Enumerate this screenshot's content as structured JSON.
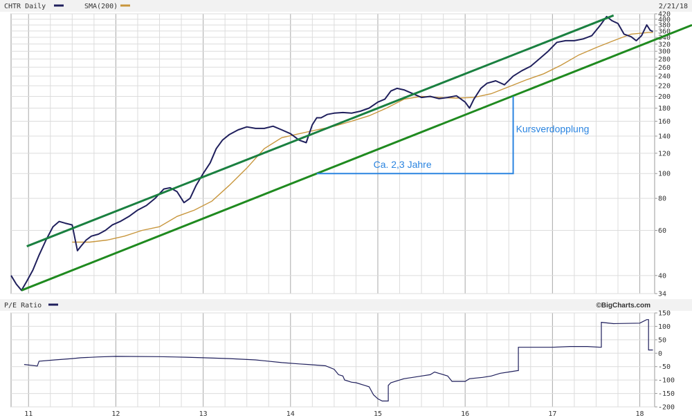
{
  "chart_data": [
    {
      "type": "line",
      "id": "price",
      "header": {
        "symbol_label": "CHTR Daily",
        "sma_label": "SMA(200)",
        "date_label": "2/21/18"
      },
      "y_scale": "log",
      "ylim": [
        34,
        420
      ],
      "xlim": [
        2010.8,
        2018.17
      ],
      "y_ticks": [
        "420",
        "400",
        "380",
        "360",
        "340",
        "320",
        "300",
        "280",
        "260",
        "240",
        "220",
        "200",
        "180",
        "160",
        "140",
        "120",
        "100",
        "80",
        "60",
        "40",
        "34"
      ],
      "colors": {
        "price": "#1f1f5c",
        "sma": "#c8963c",
        "channel_upper": "#1a8040",
        "channel_lower": "#1f8a1f",
        "annotation": "#2a84e0",
        "grid": "#c8c8c8"
      },
      "series": [
        {
          "name": "CHTR Daily",
          "x": [
            2010.8,
            2010.86,
            2010.92,
            2010.98,
            2011.05,
            2011.12,
            2011.2,
            2011.28,
            2011.35,
            2011.42,
            2011.5,
            2011.56,
            2011.6,
            2011.66,
            2011.72,
            2011.8,
            2011.88,
            2011.96,
            2012.05,
            2012.15,
            2012.25,
            2012.35,
            2012.45,
            2012.55,
            2012.62,
            2012.7,
            2012.78,
            2012.85,
            2012.92,
            2013.0,
            2013.08,
            2013.15,
            2013.22,
            2013.3,
            2013.4,
            2013.5,
            2013.6,
            2013.7,
            2013.8,
            2013.9,
            2014.0,
            2014.1,
            2014.18,
            2014.25,
            2014.3,
            2014.35,
            2014.42,
            2014.5,
            2014.6,
            2014.7,
            2014.8,
            2014.9,
            2015.0,
            2015.08,
            2015.15,
            2015.22,
            2015.3,
            2015.4,
            2015.5,
            2015.6,
            2015.7,
            2015.8,
            2015.9,
            2016.0,
            2016.05,
            2016.1,
            2016.18,
            2016.25,
            2016.35,
            2016.45,
            2016.55,
            2016.65,
            2016.75,
            2016.85,
            2016.95,
            2017.05,
            2017.15,
            2017.25,
            2017.35,
            2017.45,
            2017.55,
            2017.62,
            2017.68,
            2017.75,
            2017.82,
            2017.9,
            2017.96,
            2018.02,
            2018.08,
            2018.12,
            2018.15
          ],
          "values": [
            40,
            37,
            35,
            38,
            42,
            48,
            55,
            62,
            65,
            64,
            63,
            50,
            52,
            55,
            57,
            58,
            60,
            63,
            65,
            68,
            72,
            75,
            80,
            87,
            88,
            85,
            77,
            80,
            90,
            100,
            110,
            125,
            135,
            142,
            148,
            152,
            150,
            150,
            153,
            148,
            143,
            135,
            132,
            155,
            165,
            165,
            170,
            172,
            173,
            172,
            175,
            180,
            190,
            195,
            210,
            215,
            212,
            205,
            198,
            200,
            196,
            198,
            201,
            190,
            180,
            195,
            215,
            225,
            230,
            222,
            240,
            252,
            262,
            280,
            300,
            325,
            330,
            330,
            335,
            345,
            380,
            410,
            395,
            385,
            350,
            342,
            330,
            345,
            380,
            362,
            358
          ]
        },
        {
          "name": "SMA(200)",
          "x": [
            2011.5,
            2011.7,
            2011.9,
            2012.1,
            2012.3,
            2012.5,
            2012.7,
            2012.9,
            2013.1,
            2013.3,
            2013.5,
            2013.7,
            2013.9,
            2014.1,
            2014.3,
            2014.5,
            2014.7,
            2014.9,
            2015.1,
            2015.3,
            2015.5,
            2015.7,
            2015.9,
            2016.1,
            2016.3,
            2016.5,
            2016.7,
            2016.9,
            2017.1,
            2017.3,
            2017.5,
            2017.7,
            2017.9,
            2018.1,
            2018.15
          ],
          "values": [
            54,
            54,
            55,
            57,
            60,
            62,
            68,
            72,
            78,
            90,
            105,
            125,
            138,
            143,
            148,
            153,
            160,
            168,
            180,
            195,
            200,
            198,
            197,
            198,
            205,
            218,
            232,
            245,
            265,
            290,
            310,
            330,
            350,
            355,
            355
          ]
        }
      ],
      "channel": {
        "upper": {
          "x": [
            2010.98,
            2017.7
          ],
          "values": [
            52,
            414
          ]
        },
        "lower": {
          "x": [
            2010.92,
            2018.6
          ],
          "values": [
            35,
            380
          ]
        }
      },
      "annotations": {
        "horizontal_label": "Ca. 2,3 Jahre",
        "vertical_label": "Kursverdopplung",
        "bracket": {
          "x_start": 2014.3,
          "x_end": 2016.55,
          "y_low": 100,
          "y_high": 200
        }
      }
    },
    {
      "type": "line",
      "id": "pe",
      "header": {
        "label": "P/E Ratio",
        "source": "©BigCharts.com"
      },
      "ylim": [
        -200,
        150
      ],
      "xlim": [
        2010.8,
        2018.17
      ],
      "y_ticks": [
        "150",
        "100",
        "50",
        "0",
        "-50",
        "-100",
        "-150",
        "-200"
      ],
      "x_tick_positions": [
        2011,
        2012,
        2013,
        2014,
        2015,
        2016,
        2017,
        2018
      ],
      "x_tick_labels": [
        "11",
        "12",
        "13",
        "14",
        "15",
        "16",
        "17",
        "18"
      ],
      "series": [
        {
          "name": "P/E Ratio",
          "x": [
            2010.95,
            2011.1,
            2011.12,
            2011.3,
            2011.5,
            2011.6,
            2011.8,
            2012.0,
            2012.5,
            2012.8,
            2013.0,
            2013.3,
            2013.6,
            2013.9,
            2014.1,
            2014.2,
            2014.4,
            2014.5,
            2014.55,
            2014.6,
            2014.62,
            2014.7,
            2014.75,
            2014.85,
            2014.9,
            2014.95,
            2015.0,
            2015.05,
            2015.1,
            2015.12,
            2015.15,
            2015.3,
            2015.4,
            2015.5,
            2015.6,
            2015.65,
            2015.8,
            2015.85,
            2016.0,
            2016.05,
            2016.2,
            2016.3,
            2016.4,
            2016.5,
            2016.6,
            2016.61,
            2017.0,
            2017.2,
            2017.4,
            2017.55,
            2017.56,
            2017.7,
            2018.0,
            2018.08,
            2018.1,
            2018.15
          ],
          "values": [
            -42,
            -48,
            -30,
            -25,
            -20,
            -17,
            -14,
            -12,
            -13,
            -15,
            -17,
            -20,
            -25,
            -35,
            -40,
            -42,
            -47,
            -60,
            -80,
            -85,
            -100,
            -108,
            -110,
            -120,
            -125,
            -155,
            -170,
            -178,
            -178,
            -120,
            -110,
            -95,
            -90,
            -85,
            -80,
            -70,
            -85,
            -105,
            -105,
            -95,
            -90,
            -85,
            -75,
            -70,
            -65,
            22,
            22,
            25,
            25,
            22,
            115,
            110,
            112,
            125,
            12,
            12
          ]
        }
      ]
    }
  ]
}
